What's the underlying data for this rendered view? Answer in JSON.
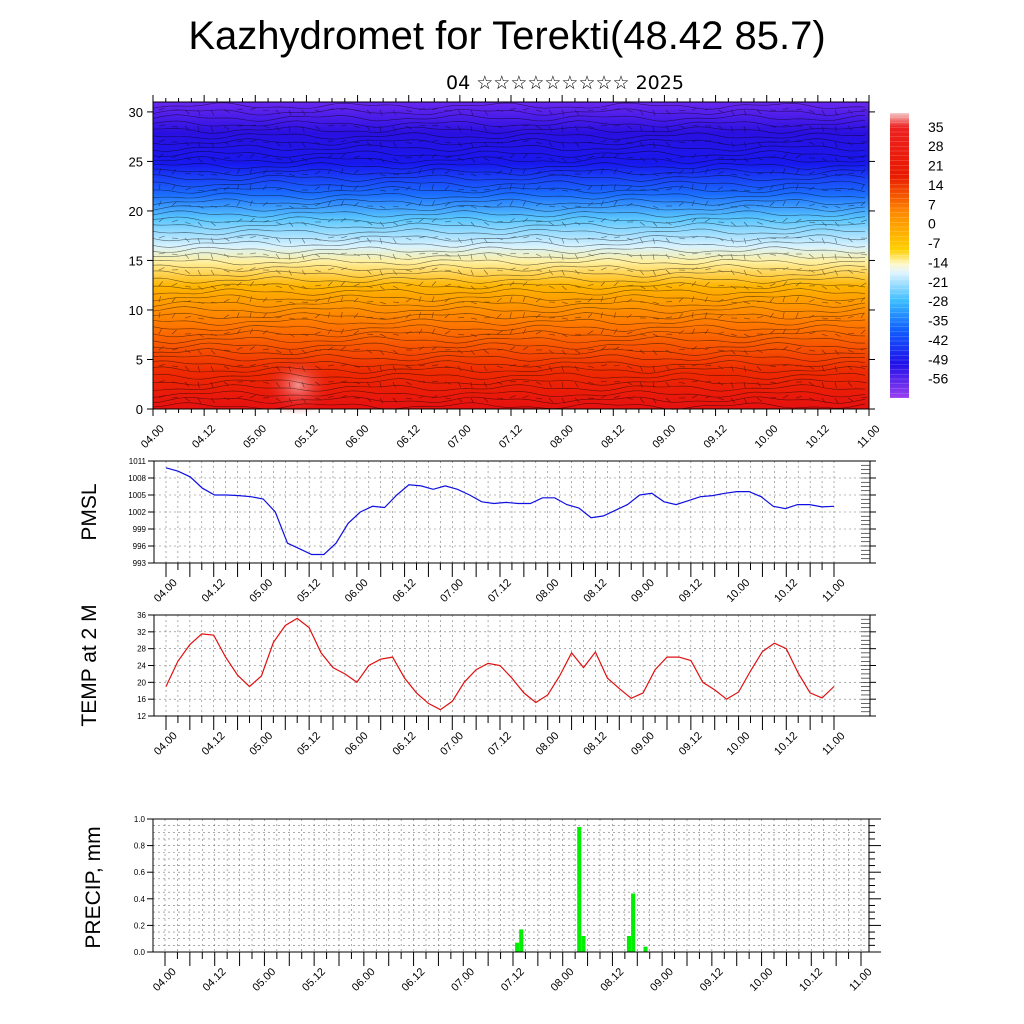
{
  "title": "Kazhydromet for Terekti(48.42 85.7)",
  "subtitle": "04 ☆☆☆☆☆☆☆☆☆ 2025",
  "chart_data": [
    {
      "type": "heatmap",
      "description_values": "temperature cross-section with wind field",
      "x_tick_labels": [
        "04.00",
        "04.12",
        "05.00",
        "05.12",
        "06.00",
        "06.12",
        "07.00",
        "07.12",
        "08.00",
        "08.12",
        "09.00",
        "09.12",
        "10.00",
        "10.12",
        "11.00"
      ],
      "ylim": [
        0,
        31
      ],
      "y_ticks": [
        0,
        5,
        10,
        15,
        20,
        25,
        30
      ],
      "colorbar_labels": [
        "35",
        "28",
        "21",
        "14",
        "7",
        "0",
        "-7",
        "-14",
        "-21",
        "-28",
        "-35",
        "-42",
        "-49",
        "-56"
      ],
      "colorbar_range": [
        -63,
        40
      ],
      "colors": {
        "hot": "#e60000",
        "warm": "#ffb000",
        "neutral": "#fff3a0",
        "cold": "#3fb0ff",
        "coldest": "#3300dd"
      }
    },
    {
      "type": "line",
      "ylabel": "PMSL",
      "ylim": [
        993,
        1011
      ],
      "y_ticks": [
        993,
        996,
        999,
        1002,
        1005,
        1008,
        1011
      ],
      "x_tick_labels": [
        "04.00",
        "04.12",
        "05.00",
        "05.12",
        "06.00",
        "06.12",
        "07.00",
        "07.12",
        "08.00",
        "08.12",
        "09.00",
        "09.12",
        "10.00",
        "10.12",
        "11.00"
      ],
      "color": "#1010e0",
      "series": [
        {
          "values": [
            1009.8,
            1009.2,
            1008.2,
            1006.2,
            1005.0,
            1005.0,
            1004.9,
            1004.7,
            1004.3,
            1002.0,
            996.5,
            995.5,
            994.5,
            994.5,
            996.5,
            1000.0,
            1002.0,
            1003.0,
            1002.8,
            1005.0,
            1006.8,
            1006.6,
            1006.0,
            1006.6,
            1006.0,
            1005.0,
            1003.8,
            1003.5,
            1003.7,
            1003.5,
            1003.5,
            1004.5,
            1004.5,
            1003.3,
            1002.7,
            1001.0,
            1001.3,
            1002.3,
            1003.3,
            1005.0,
            1005.3,
            1003.8,
            1003.3,
            1004.0,
            1004.7,
            1004.9,
            1005.3,
            1005.6,
            1005.6,
            1004.7,
            1003.0,
            1002.6,
            1003.3,
            1003.3,
            1002.9,
            1003.0
          ]
        }
      ]
    },
    {
      "type": "line",
      "ylabel": "TEMP at 2 M",
      "ylim": [
        12,
        36
      ],
      "y_ticks": [
        12,
        16,
        20,
        24,
        28,
        32,
        36
      ],
      "x_tick_labels": [
        "04.00",
        "04.12",
        "05.00",
        "05.12",
        "06.00",
        "06.12",
        "07.00",
        "07.12",
        "08.00",
        "08.12",
        "09.00",
        "09.12",
        "10.00",
        "10.12",
        "11.00"
      ],
      "color": "#e01010",
      "series": [
        {
          "values": [
            19.0,
            25.0,
            29.0,
            31.5,
            31.2,
            26.0,
            21.7,
            19.0,
            21.5,
            29.5,
            33.5,
            35.2,
            33.0,
            27.0,
            23.5,
            22.0,
            20.0,
            24.0,
            25.5,
            26.0,
            21.0,
            17.5,
            15.0,
            13.5,
            15.5,
            20.0,
            23.0,
            24.5,
            24.0,
            21.0,
            17.5,
            15.2,
            17.0,
            21.5,
            27.0,
            23.5,
            27.2,
            21.0,
            18.5,
            16.2,
            17.5,
            23.0,
            26.0,
            26.0,
            25.2,
            20.0,
            18.2,
            16.0,
            17.7,
            22.7,
            27.3,
            29.3,
            28.0,
            22.2,
            17.5,
            16.3,
            19.0
          ]
        }
      ]
    },
    {
      "type": "bar",
      "ylabel": "PRECIP, mm",
      "ylim": [
        0,
        1.0
      ],
      "y_ticks": [
        0.0,
        0.2,
        0.4,
        0.6,
        0.8,
        1.0
      ],
      "x_tick_labels": [
        "04.00",
        "04.12",
        "05.00",
        "05.12",
        "06.00",
        "06.12",
        "07.00",
        "07.12",
        "08.00",
        "08.12",
        "09.00",
        "09.12",
        "10.00",
        "10.12",
        "11.00"
      ],
      "color": "#00ee00",
      "bars": [
        {
          "x": 7.0833,
          "value": 0.07
        },
        {
          "x": 7.1667,
          "value": 0.17
        },
        {
          "x": 8.3333,
          "value": 0.94
        },
        {
          "x": 8.4167,
          "value": 0.12
        },
        {
          "x": 9.3333,
          "value": 0.12
        },
        {
          "x": 9.4167,
          "value": 0.44
        },
        {
          "x": 9.6667,
          "value": 0.04
        }
      ]
    }
  ]
}
